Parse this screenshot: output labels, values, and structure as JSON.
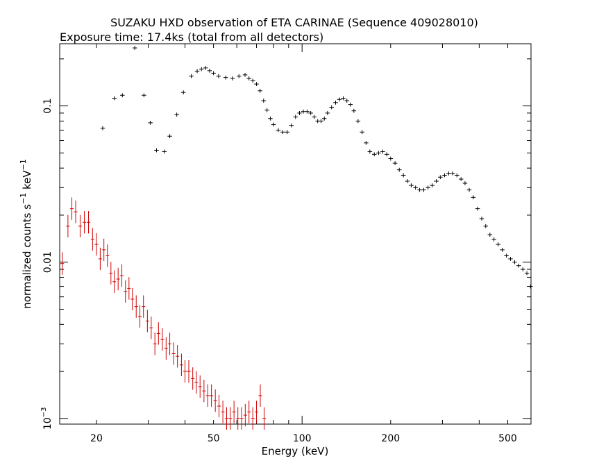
{
  "chart_data": {
    "type": "scatter",
    "title": "SUZAKU HXD observation of ETA CARINAE (Sequence 409028010)",
    "subtitle": "Exposure time: 17.4ks (total from all detectors)",
    "xlabel": "Energy (keV)",
    "ylabel_parts": {
      "pre": "normalized counts s",
      "sup1": "−1",
      "mid": " keV",
      "sup2": "−1"
    },
    "x_scale": "log",
    "y_scale": "log",
    "xlim": [
      15,
      600
    ],
    "ylim": [
      0.00092,
      0.25
    ],
    "x_ticks": [
      {
        "value": 20,
        "label": "20"
      },
      {
        "value": 50,
        "label": "50"
      },
      {
        "value": 100,
        "label": "100"
      },
      {
        "value": 200,
        "label": "200"
      },
      {
        "value": 500,
        "label": "500"
      }
    ],
    "y_ticks": [
      {
        "value": 0.001,
        "base": "10",
        "exp": "−3"
      },
      {
        "value": 0.01,
        "label": "0.01"
      },
      {
        "value": 0.1,
        "label": "0.1"
      }
    ],
    "grid": false,
    "series": [
      {
        "color": "#000000",
        "points": [
          [
            21,
            0.072
          ],
          [
            23,
            0.112
          ],
          [
            24.5,
            0.117
          ],
          [
            27,
            0.235
          ],
          [
            29,
            0.117
          ],
          [
            30.5,
            0.078
          ],
          [
            32,
            0.052
          ],
          [
            34,
            0.051
          ],
          [
            35.5,
            0.064
          ],
          [
            37.5,
            0.088
          ],
          [
            39.5,
            0.122
          ],
          [
            42,
            0.155
          ],
          [
            44,
            0.167
          ],
          [
            45.5,
            0.172
          ],
          [
            47,
            0.175
          ],
          [
            48.5,
            0.168
          ],
          [
            50,
            0.162
          ],
          [
            52,
            0.155
          ],
          [
            55,
            0.152
          ],
          [
            58,
            0.15
          ],
          [
            61,
            0.155
          ],
          [
            64,
            0.158
          ],
          [
            66,
            0.15
          ],
          [
            68,
            0.145
          ],
          [
            70,
            0.138
          ],
          [
            72,
            0.125
          ],
          [
            74,
            0.108
          ],
          [
            76,
            0.094
          ],
          [
            78,
            0.083
          ],
          [
            80,
            0.076
          ],
          [
            83,
            0.07
          ],
          [
            86,
            0.068
          ],
          [
            89,
            0.068
          ],
          [
            92,
            0.075
          ],
          [
            95,
            0.085
          ],
          [
            98,
            0.09
          ],
          [
            101,
            0.092
          ],
          [
            104,
            0.092
          ],
          [
            107,
            0.09
          ],
          [
            110,
            0.085
          ],
          [
            113,
            0.08
          ],
          [
            116,
            0.08
          ],
          [
            119,
            0.083
          ],
          [
            122,
            0.09
          ],
          [
            126,
            0.098
          ],
          [
            130,
            0.105
          ],
          [
            134,
            0.11
          ],
          [
            138,
            0.112
          ],
          [
            142,
            0.108
          ],
          [
            146,
            0.102
          ],
          [
            150,
            0.093
          ],
          [
            155,
            0.08
          ],
          [
            160,
            0.068
          ],
          [
            165,
            0.058
          ],
          [
            170,
            0.051
          ],
          [
            176,
            0.049
          ],
          [
            182,
            0.05
          ],
          [
            188,
            0.051
          ],
          [
            194,
            0.049
          ],
          [
            200,
            0.046
          ],
          [
            207,
            0.043
          ],
          [
            214,
            0.039
          ],
          [
            221,
            0.036
          ],
          [
            228,
            0.033
          ],
          [
            235,
            0.031
          ],
          [
            243,
            0.03
          ],
          [
            251,
            0.029
          ],
          [
            259,
            0.029
          ],
          [
            268,
            0.03
          ],
          [
            277,
            0.031
          ],
          [
            286,
            0.033
          ],
          [
            295,
            0.035
          ],
          [
            305,
            0.036
          ],
          [
            315,
            0.037
          ],
          [
            325,
            0.037
          ],
          [
            336,
            0.036
          ],
          [
            347,
            0.034
          ],
          [
            358,
            0.032
          ],
          [
            370,
            0.029
          ],
          [
            382,
            0.026
          ],
          [
            395,
            0.022
          ],
          [
            408,
            0.019
          ],
          [
            421,
            0.017
          ],
          [
            435,
            0.015
          ],
          [
            449,
            0.014
          ],
          [
            464,
            0.013
          ],
          [
            479,
            0.012
          ],
          [
            495,
            0.011
          ],
          [
            511,
            0.0105
          ],
          [
            528,
            0.01
          ],
          [
            545,
            0.0095
          ],
          [
            563,
            0.009
          ],
          [
            581,
            0.0085
          ],
          [
            598,
            0.007
          ]
        ]
      },
      {
        "color": "#d00000",
        "points": [
          [
            15.3,
            0.0098
          ],
          [
            16.0,
            0.017
          ],
          [
            16.5,
            0.022
          ],
          [
            17.0,
            0.021
          ],
          [
            17.6,
            0.017
          ],
          [
            18.2,
            0.018
          ],
          [
            18.8,
            0.018
          ],
          [
            19.4,
            0.014
          ],
          [
            20.0,
            0.013
          ],
          [
            20.6,
            0.0105
          ],
          [
            21.2,
            0.012
          ],
          [
            21.8,
            0.011
          ],
          [
            22.4,
            0.0085
          ],
          [
            23.0,
            0.0075
          ],
          [
            23.7,
            0.0078
          ],
          [
            24.4,
            0.0082
          ],
          [
            25.1,
            0.0065
          ],
          [
            25.8,
            0.0068
          ],
          [
            26.5,
            0.0058
          ],
          [
            27.3,
            0.0052
          ],
          [
            28.1,
            0.0045
          ],
          [
            28.9,
            0.0052
          ],
          [
            29.8,
            0.0042
          ],
          [
            30.7,
            0.0038
          ],
          [
            31.6,
            0.003
          ],
          [
            32.5,
            0.0035
          ],
          [
            33.5,
            0.0032
          ],
          [
            34.5,
            0.0028
          ],
          [
            35.5,
            0.003
          ],
          [
            36.6,
            0.0026
          ],
          [
            37.7,
            0.0025
          ],
          [
            38.9,
            0.0022
          ],
          [
            40.0,
            0.002
          ],
          [
            41.2,
            0.002
          ],
          [
            42.5,
            0.0018
          ],
          [
            43.7,
            0.0017
          ],
          [
            45.0,
            0.0016
          ],
          [
            46.4,
            0.0015
          ],
          [
            47.8,
            0.0014
          ],
          [
            49.2,
            0.0014
          ],
          [
            50.7,
            0.0013
          ],
          [
            52.2,
            0.0012
          ],
          [
            53.8,
            0.0011
          ],
          [
            55.4,
            0.001
          ],
          [
            57.0,
            0.001
          ],
          [
            58.7,
            0.0011
          ],
          [
            60.5,
            0.001
          ],
          [
            62.3,
            0.001
          ],
          [
            64.1,
            0.00105
          ],
          [
            66.0,
            0.0011
          ],
          [
            68.0,
            0.001
          ],
          [
            70.0,
            0.0011
          ],
          [
            72.1,
            0.0014
          ],
          [
            74.3,
            0.001
          ]
        ]
      }
    ]
  }
}
